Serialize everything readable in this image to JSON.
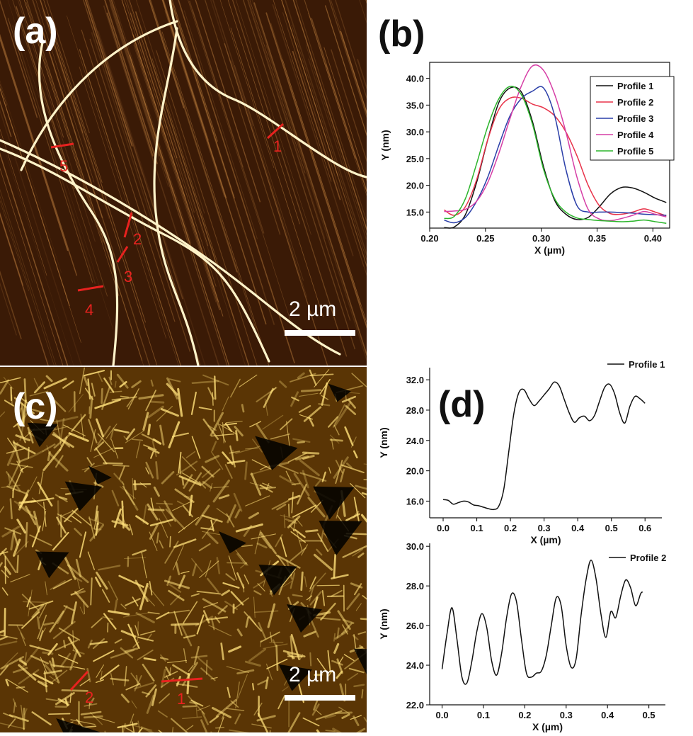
{
  "panels": {
    "a": {
      "letter": "(a)",
      "scale_label": "2 µm",
      "markers": [
        "1",
        "2",
        "3",
        "4",
        "5"
      ]
    },
    "b": {
      "letter": "(b)"
    },
    "c": {
      "letter": "(c)",
      "scale_label": "2 µm",
      "markers": [
        "1",
        "2"
      ]
    },
    "d": {
      "letter": "(d)"
    }
  },
  "colors": {
    "afm_a_bg": "#3a1a06",
    "afm_a_fiber": "#fff3c9",
    "afm_c_bg": "#5a3505",
    "afm_c_fiber": "#ffe07a",
    "marker": "#e8221f"
  },
  "chart_data": [
    {
      "id": "b",
      "type": "line",
      "xlabel": "X (µm)",
      "ylabel": "Y (nm)",
      "xlim": [
        0.2,
        0.415
      ],
      "ylim": [
        12,
        43
      ],
      "xticks": [
        "0.20",
        "0.25",
        "0.30",
        "0.35",
        "0.40"
      ],
      "xtick_values": [
        0.2,
        0.25,
        0.3,
        0.35,
        0.4
      ],
      "yticks": [
        "15.0",
        "20.0",
        "25.0",
        "30.0",
        "35.0",
        "40.0"
      ],
      "ytick_values": [
        15,
        20,
        25,
        30,
        35,
        40
      ],
      "legend": "top-right",
      "series": [
        {
          "name": "Profile 1",
          "color": "#111111",
          "x": [
            0.213,
            0.222,
            0.232,
            0.242,
            0.252,
            0.262,
            0.272,
            0.282,
            0.292,
            0.302,
            0.312,
            0.322,
            0.332,
            0.342,
            0.352,
            0.362,
            0.372,
            0.382,
            0.392,
            0.402,
            0.412
          ],
          "y": [
            12.1,
            12.2,
            14.5,
            20.5,
            28.5,
            35.5,
            38.2,
            37.5,
            32.0,
            23.5,
            17.2,
            14.6,
            13.6,
            14.0,
            16.0,
            18.4,
            19.6,
            19.5,
            18.7,
            17.6,
            16.8
          ]
        },
        {
          "name": "Profile 2",
          "color": "#e8334a",
          "x": [
            0.213,
            0.222,
            0.232,
            0.242,
            0.252,
            0.262,
            0.272,
            0.282,
            0.292,
            0.302,
            0.312,
            0.322,
            0.332,
            0.342,
            0.352,
            0.362,
            0.372,
            0.382,
            0.392,
            0.402,
            0.412
          ],
          "y": [
            15.4,
            14.4,
            16.0,
            21.0,
            28.5,
            34.2,
            36.3,
            36.3,
            35.2,
            34.5,
            33.0,
            30.0,
            25.5,
            20.0,
            16.2,
            14.7,
            14.6,
            15.0,
            15.6,
            15.0,
            14.3
          ]
        },
        {
          "name": "Profile 3",
          "color": "#2a3ea8",
          "x": [
            0.213,
            0.222,
            0.232,
            0.242,
            0.252,
            0.262,
            0.272,
            0.282,
            0.292,
            0.302,
            0.312,
            0.322,
            0.332,
            0.342,
            0.352,
            0.362,
            0.372,
            0.382,
            0.392,
            0.402,
            0.412
          ],
          "y": [
            13.5,
            13.0,
            14.0,
            17.0,
            21.5,
            27.5,
            33.0,
            36.2,
            37.6,
            38.2,
            33.0,
            23.0,
            16.2,
            15.0,
            15.0,
            15.0,
            14.9,
            14.8,
            14.6,
            14.5,
            14.4
          ]
        },
        {
          "name": "Profile 4",
          "color": "#d63ea6",
          "x": [
            0.213,
            0.222,
            0.232,
            0.242,
            0.252,
            0.262,
            0.272,
            0.282,
            0.292,
            0.302,
            0.312,
            0.322,
            0.332,
            0.342,
            0.352,
            0.362,
            0.372,
            0.382,
            0.392,
            0.402,
            0.412
          ],
          "y": [
            15.1,
            15.2,
            15.5,
            17.0,
            20.5,
            26.0,
            32.5,
            38.5,
            42.3,
            41.5,
            37.0,
            30.0,
            21.5,
            15.5,
            13.7,
            13.4,
            13.8,
            14.4,
            15.1,
            14.6,
            14.1
          ]
        },
        {
          "name": "Profile 5",
          "color": "#2bb52b",
          "x": [
            0.213,
            0.222,
            0.232,
            0.242,
            0.252,
            0.262,
            0.272,
            0.282,
            0.292,
            0.302,
            0.312,
            0.322,
            0.332,
            0.342,
            0.352,
            0.362,
            0.372,
            0.382,
            0.392,
            0.402,
            0.412
          ],
          "y": [
            13.8,
            14.2,
            17.5,
            24.0,
            31.0,
            36.2,
            38.5,
            37.0,
            31.5,
            23.0,
            17.5,
            15.0,
            13.9,
            13.6,
            13.4,
            13.3,
            13.2,
            13.3,
            13.5,
            13.2,
            12.9
          ]
        }
      ]
    },
    {
      "id": "d1",
      "type": "line",
      "xlabel": "X (µm)",
      "ylabel": "Y (nm)",
      "xlim": [
        -0.04,
        0.65
      ],
      "ylim": [
        13.8,
        33.6
      ],
      "xticks": [
        "0.0",
        "0.1",
        "0.2",
        "0.3",
        "0.4",
        "0.5",
        "0.6"
      ],
      "xtick_values": [
        0.0,
        0.1,
        0.2,
        0.3,
        0.4,
        0.5,
        0.6
      ],
      "yticks": [
        "16.0",
        "20.0",
        "24.0",
        "28.0",
        "32.0"
      ],
      "ytick_values": [
        16,
        20,
        24,
        28,
        32
      ],
      "legend": "top-right",
      "series": [
        {
          "name": "Profile 1",
          "color": "#111111",
          "x": [
            0.0,
            0.015,
            0.03,
            0.045,
            0.06,
            0.075,
            0.09,
            0.105,
            0.12,
            0.135,
            0.15,
            0.165,
            0.18,
            0.195,
            0.21,
            0.225,
            0.24,
            0.255,
            0.27,
            0.285,
            0.3,
            0.315,
            0.33,
            0.345,
            0.36,
            0.375,
            0.39,
            0.405,
            0.42,
            0.435,
            0.45,
            0.465,
            0.48,
            0.495,
            0.51,
            0.525,
            0.54,
            0.555,
            0.57,
            0.585,
            0.6
          ],
          "y": [
            16.2,
            16.1,
            15.6,
            15.8,
            16.0,
            15.9,
            15.5,
            15.4,
            15.2,
            15.0,
            14.9,
            15.3,
            17.5,
            22.5,
            27.5,
            30.3,
            30.7,
            29.5,
            28.6,
            29.2,
            30.0,
            30.8,
            31.7,
            31.2,
            29.4,
            27.6,
            26.4,
            27.0,
            27.2,
            26.6,
            27.3,
            29.2,
            31.0,
            31.4,
            30.1,
            27.6,
            26.3,
            28.5,
            29.8,
            29.5,
            28.9
          ]
        }
      ]
    },
    {
      "id": "d2",
      "type": "line",
      "xlabel": "X (µm)",
      "ylabel": "Y (nm)",
      "xlim": [
        -0.03,
        0.54
      ],
      "ylim": [
        22.0,
        30.15
      ],
      "xticks": [
        "0.0",
        "0.1",
        "0.2",
        "0.3",
        "0.4",
        "0.5"
      ],
      "xtick_values": [
        0.0,
        0.1,
        0.2,
        0.3,
        0.4,
        0.5
      ],
      "yticks": [
        "22.0",
        "24.0",
        "26.0",
        "28.0",
        "30.0"
      ],
      "ytick_values": [
        22,
        24,
        26,
        28,
        30
      ],
      "legend": "top-right",
      "series": [
        {
          "name": "Profile 2",
          "color": "#111111",
          "x": [
            0.0,
            0.012,
            0.024,
            0.036,
            0.048,
            0.06,
            0.072,
            0.084,
            0.096,
            0.108,
            0.12,
            0.132,
            0.144,
            0.156,
            0.168,
            0.18,
            0.192,
            0.204,
            0.216,
            0.228,
            0.24,
            0.252,
            0.264,
            0.276,
            0.288,
            0.3,
            0.312,
            0.324,
            0.336,
            0.348,
            0.36,
            0.372,
            0.384,
            0.396,
            0.408,
            0.42,
            0.432,
            0.444,
            0.456,
            0.468,
            0.48,
            0.485
          ],
          "y": [
            23.8,
            25.6,
            26.9,
            25.3,
            23.4,
            23.1,
            24.2,
            25.7,
            26.6,
            25.9,
            24.2,
            23.5,
            24.6,
            26.4,
            27.6,
            27.2,
            25.3,
            23.6,
            23.4,
            23.6,
            23.7,
            24.5,
            26.0,
            27.4,
            27.0,
            25.0,
            23.9,
            24.3,
            26.5,
            28.3,
            29.3,
            28.4,
            26.6,
            25.4,
            26.7,
            26.4,
            27.5,
            28.3,
            27.9,
            27.0,
            27.6,
            27.7
          ]
        }
      ]
    }
  ]
}
